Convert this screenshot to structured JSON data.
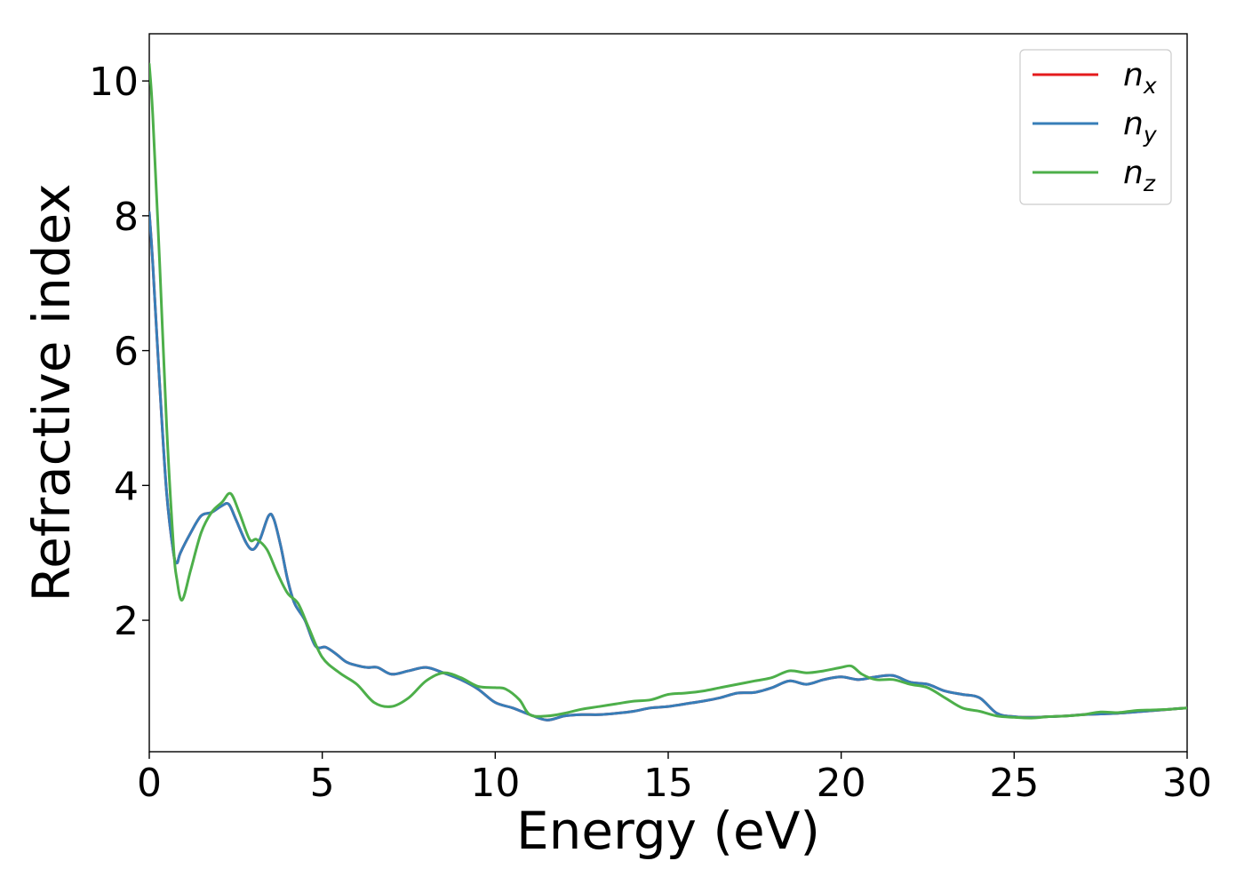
{
  "chart_data": {
    "type": "line",
    "xlabel": "Energy (eV)",
    "ylabel": "Refractive index",
    "xlim": [
      0,
      30
    ],
    "ylim": [
      0.05,
      10.7
    ],
    "xticks": [
      0,
      5,
      10,
      15,
      20,
      25,
      30
    ],
    "yticks": [
      2,
      4,
      6,
      8,
      10
    ],
    "grid": false,
    "legend_position": "top-right",
    "series": [
      {
        "name": "n",
        "subscript": "x",
        "color": "#e41a1c",
        "x": [
          0,
          0.1,
          0.3,
          0.5,
          0.7,
          0.8,
          0.9,
          1.2,
          1.5,
          1.8,
          2.1,
          2.3,
          2.5,
          2.8,
          3.0,
          3.2,
          3.45,
          3.6,
          3.8,
          4.0,
          4.2,
          4.5,
          4.8,
          5.1,
          5.4,
          5.7,
          6.0,
          6.3,
          6.6,
          7.0,
          7.5,
          8.0,
          8.5,
          9.0,
          9.5,
          10.0,
          10.5,
          11.0,
          11.5,
          12.0,
          12.5,
          13.0,
          13.5,
          14.0,
          14.5,
          15.0,
          15.5,
          16.0,
          16.5,
          17.0,
          17.5,
          18.0,
          18.5,
          19.0,
          19.5,
          20.0,
          20.5,
          21.0,
          21.5,
          22.0,
          22.5,
          23.0,
          23.5,
          24.0,
          24.5,
          25.0,
          25.5,
          26.0,
          26.5,
          27.0,
          27.5,
          28.0,
          28.5,
          29.0,
          29.5,
          30.0
        ],
        "y": [
          8.05,
          7.3,
          5.5,
          3.9,
          3.0,
          2.85,
          3.0,
          3.3,
          3.55,
          3.6,
          3.7,
          3.72,
          3.5,
          3.15,
          3.05,
          3.2,
          3.55,
          3.5,
          3.1,
          2.6,
          2.25,
          2.0,
          1.62,
          1.6,
          1.5,
          1.38,
          1.33,
          1.3,
          1.3,
          1.2,
          1.25,
          1.3,
          1.22,
          1.12,
          0.98,
          0.78,
          0.7,
          0.6,
          0.52,
          0.58,
          0.6,
          0.6,
          0.62,
          0.65,
          0.7,
          0.72,
          0.76,
          0.8,
          0.85,
          0.92,
          0.93,
          1.0,
          1.1,
          1.05,
          1.12,
          1.16,
          1.12,
          1.16,
          1.18,
          1.08,
          1.05,
          0.95,
          0.9,
          0.85,
          0.62,
          0.57,
          0.56,
          0.57,
          0.58,
          0.6,
          0.61,
          0.62,
          0.64,
          0.66,
          0.68,
          0.7
        ]
      },
      {
        "name": "n",
        "subscript": "y",
        "color": "#377eb8",
        "x": [
          0,
          0.1,
          0.3,
          0.5,
          0.7,
          0.8,
          0.9,
          1.2,
          1.5,
          1.8,
          2.1,
          2.3,
          2.5,
          2.8,
          3.0,
          3.2,
          3.45,
          3.6,
          3.8,
          4.0,
          4.2,
          4.5,
          4.8,
          5.1,
          5.4,
          5.7,
          6.0,
          6.3,
          6.6,
          7.0,
          7.5,
          8.0,
          8.5,
          9.0,
          9.5,
          10.0,
          10.5,
          11.0,
          11.5,
          12.0,
          12.5,
          13.0,
          13.5,
          14.0,
          14.5,
          15.0,
          15.5,
          16.0,
          16.5,
          17.0,
          17.5,
          18.0,
          18.5,
          19.0,
          19.5,
          20.0,
          20.5,
          21.0,
          21.5,
          22.0,
          22.5,
          23.0,
          23.5,
          24.0,
          24.5,
          25.0,
          25.5,
          26.0,
          26.5,
          27.0,
          27.5,
          28.0,
          28.5,
          29.0,
          29.5,
          30.0
        ],
        "y": [
          8.05,
          7.3,
          5.5,
          3.9,
          3.0,
          2.85,
          3.0,
          3.3,
          3.55,
          3.6,
          3.7,
          3.72,
          3.5,
          3.15,
          3.05,
          3.2,
          3.55,
          3.5,
          3.1,
          2.6,
          2.25,
          2.0,
          1.62,
          1.6,
          1.5,
          1.38,
          1.33,
          1.3,
          1.3,
          1.2,
          1.25,
          1.3,
          1.22,
          1.12,
          0.98,
          0.78,
          0.7,
          0.6,
          0.52,
          0.58,
          0.6,
          0.6,
          0.62,
          0.65,
          0.7,
          0.72,
          0.76,
          0.8,
          0.85,
          0.92,
          0.93,
          1.0,
          1.1,
          1.05,
          1.12,
          1.16,
          1.12,
          1.16,
          1.18,
          1.08,
          1.05,
          0.95,
          0.9,
          0.85,
          0.62,
          0.57,
          0.56,
          0.57,
          0.58,
          0.6,
          0.61,
          0.62,
          0.64,
          0.66,
          0.68,
          0.7
        ]
      },
      {
        "name": "n",
        "subscript": "z",
        "color": "#4daf4a",
        "x": [
          0,
          0.1,
          0.3,
          0.5,
          0.7,
          0.8,
          0.95,
          1.2,
          1.5,
          1.8,
          2.1,
          2.35,
          2.6,
          2.9,
          3.1,
          3.4,
          3.7,
          4.0,
          4.3,
          4.6,
          5.0,
          5.5,
          6.0,
          6.5,
          7.0,
          7.5,
          8.0,
          8.5,
          9.0,
          9.5,
          10.0,
          10.3,
          10.7,
          11.0,
          11.5,
          12.0,
          12.5,
          13.0,
          13.5,
          14.0,
          14.5,
          15.0,
          15.5,
          16.0,
          16.5,
          17.0,
          17.5,
          18.0,
          18.5,
          19.0,
          19.5,
          20.0,
          20.3,
          20.6,
          21.0,
          21.5,
          22.0,
          22.5,
          23.0,
          23.5,
          24.0,
          24.5,
          25.0,
          25.5,
          26.0,
          26.5,
          27.0,
          27.5,
          28.0,
          28.5,
          29.0,
          29.5,
          30.0
        ],
        "y": [
          10.25,
          9.5,
          7.3,
          4.9,
          3.1,
          2.6,
          2.3,
          2.75,
          3.3,
          3.6,
          3.75,
          3.88,
          3.6,
          3.2,
          3.2,
          3.05,
          2.7,
          2.4,
          2.25,
          1.9,
          1.45,
          1.22,
          1.05,
          0.78,
          0.72,
          0.85,
          1.1,
          1.22,
          1.15,
          1.02,
          1.0,
          0.98,
          0.82,
          0.6,
          0.58,
          0.62,
          0.68,
          0.72,
          0.76,
          0.8,
          0.82,
          0.9,
          0.92,
          0.95,
          1.0,
          1.05,
          1.1,
          1.15,
          1.25,
          1.22,
          1.25,
          1.3,
          1.32,
          1.2,
          1.12,
          1.12,
          1.05,
          1.0,
          0.85,
          0.7,
          0.65,
          0.58,
          0.56,
          0.55,
          0.57,
          0.58,
          0.6,
          0.64,
          0.63,
          0.66,
          0.67,
          0.68,
          0.7
        ]
      }
    ]
  }
}
